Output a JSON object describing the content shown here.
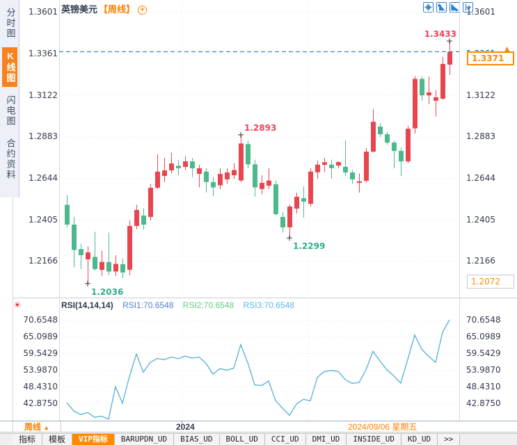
{
  "header": {
    "symbol": "英镑美元",
    "period_tag": "【周线】",
    "add_button": "+"
  },
  "toolbar": {
    "icons": [
      "pan",
      "scale-y-axis",
      "scale-x-axis",
      "shift-right"
    ]
  },
  "sidebar": {
    "items": [
      {
        "label": "分时图",
        "selected": false
      },
      {
        "label": "K线图",
        "selected": true
      },
      {
        "label": "闪电图",
        "selected": false
      },
      {
        "label": "合约资料",
        "selected": false
      }
    ]
  },
  "colors": {
    "up_candle": "#e8464f",
    "down_candle": "#4cb98c",
    "accent_orange": "#ff8a00",
    "marker_high": "#ef4156",
    "marker_low": "#2fae89",
    "current_price_line": "#1f7fd0",
    "rsi_line": "#52aed6",
    "rsi1_text": "#4f81d2",
    "rsi2_text": "#5fd07f",
    "rsi3_text": "#55b9e8",
    "selected_tab": "#ff8a00"
  },
  "chart_data": [
    {
      "type": "candlestick",
      "title": "英镑美元 周线",
      "y_axis_labels": [
        "1.3601",
        "1.3361",
        "1.3122",
        "1.2883",
        "1.2644",
        "1.2405",
        "1.2166"
      ],
      "ylim": [
        1.1956,
        1.3669
      ],
      "grid": "dotted",
      "current_price": "1.3371",
      "current_price_value": 1.3371,
      "reference_price": "1.2072",
      "markers": [
        {
          "label": "1.3433",
          "index": 55,
          "kind": "high",
          "anchor": "end"
        },
        {
          "label": "1.2893",
          "index": 25,
          "kind": "high",
          "anchor": "start"
        },
        {
          "label": "1.2299",
          "index": 32,
          "kind": "low",
          "anchor": "start"
        },
        {
          "label": "1.2036",
          "index": 3,
          "kind": "low",
          "anchor": "start"
        }
      ],
      "candles": [
        [
          1.249,
          1.2545,
          1.236,
          1.2376
        ],
        [
          1.2376,
          1.242,
          1.213,
          1.223
        ],
        [
          1.2235,
          1.2265,
          1.212,
          1.22
        ],
        [
          1.2176,
          1.225,
          1.2036,
          1.2216
        ],
        [
          1.219,
          1.2335,
          1.211,
          1.212
        ],
        [
          1.2115,
          1.2225,
          1.208,
          1.2161
        ],
        [
          1.216,
          1.233,
          1.2085,
          1.2106
        ],
        [
          1.2106,
          1.22,
          1.208,
          1.215
        ],
        [
          1.2148,
          1.218,
          1.2068,
          1.21
        ],
        [
          1.2116,
          1.24,
          1.2085,
          1.2368
        ],
        [
          1.2368,
          1.249,
          1.235,
          1.246
        ],
        [
          1.2428,
          1.247,
          1.2348,
          1.2376
        ],
        [
          1.242,
          1.2608,
          1.24,
          1.2588
        ],
        [
          1.2588,
          1.2781,
          1.258,
          1.2681
        ],
        [
          1.2656,
          1.276,
          1.262,
          1.2688
        ],
        [
          1.2688,
          1.279,
          1.267,
          1.2728
        ],
        [
          1.2715,
          1.275,
          1.266,
          1.27
        ],
        [
          1.2708,
          1.277,
          1.269,
          1.274
        ],
        [
          1.274,
          1.276,
          1.265,
          1.27
        ],
        [
          1.2668,
          1.272,
          1.259,
          1.27
        ],
        [
          1.2681,
          1.27,
          1.256,
          1.2621
        ],
        [
          1.2621,
          1.265,
          1.254,
          1.259
        ],
        [
          1.2602,
          1.27,
          1.258,
          1.2668
        ],
        [
          1.2636,
          1.27,
          1.261,
          1.2676
        ],
        [
          1.266,
          1.273,
          1.264,
          1.269
        ],
        [
          1.263,
          1.2893,
          1.262,
          1.2843
        ],
        [
          1.2839,
          1.286,
          1.27,
          1.2723
        ],
        [
          1.2723,
          1.275,
          1.2537,
          1.259
        ],
        [
          1.2581,
          1.266,
          1.255,
          1.2616
        ],
        [
          1.26,
          1.27,
          1.258,
          1.263
        ],
        [
          1.2608,
          1.263,
          1.2428,
          1.2436
        ],
        [
          1.242,
          1.245,
          1.233,
          1.236
        ],
        [
          1.236,
          1.249,
          1.2299,
          1.248
        ],
        [
          1.2468,
          1.256,
          1.244,
          1.2536
        ],
        [
          1.2528,
          1.2596,
          1.2416,
          1.2508
        ],
        [
          1.2496,
          1.27,
          1.248,
          1.2681
        ],
        [
          1.2677,
          1.2745,
          1.264,
          1.2721
        ],
        [
          1.272,
          1.276,
          1.268,
          1.2735
        ],
        [
          1.2721,
          1.275,
          1.2641,
          1.2701
        ],
        [
          1.2716,
          1.274,
          1.27,
          1.2736
        ],
        [
          1.2709,
          1.286,
          1.2657,
          1.2676
        ],
        [
          1.2676,
          1.269,
          1.261,
          1.2636
        ],
        [
          1.2616,
          1.267,
          1.256,
          1.2625
        ],
        [
          1.2628,
          1.2817,
          1.2615,
          1.2796
        ],
        [
          1.2796,
          1.304,
          1.279,
          1.2968
        ],
        [
          1.294,
          1.2961,
          1.2881,
          1.2896
        ],
        [
          1.2896,
          1.291,
          1.2836,
          1.2848
        ],
        [
          1.2848,
          1.286,
          1.27,
          1.28
        ],
        [
          1.28,
          1.282,
          1.2656,
          1.274
        ],
        [
          1.274,
          1.2945,
          1.273,
          1.2928
        ],
        [
          1.293,
          1.323,
          1.29,
          1.3215
        ],
        [
          1.3215,
          1.323,
          1.309,
          1.312
        ],
        [
          1.312,
          1.3229,
          1.3069,
          1.3137
        ],
        [
          1.3089,
          1.315,
          1.2997,
          1.3109
        ],
        [
          1.3101,
          1.3341,
          1.3095,
          1.3301
        ],
        [
          1.3297,
          1.3433,
          1.3237,
          1.3371
        ]
      ]
    },
    {
      "type": "line",
      "title": "RSI(14,14,14)",
      "legend": [
        "RSI1:70.6548",
        "RSI2:70.6548",
        "RSI3:70.6548"
      ],
      "y_axis_labels": [
        "70.6548",
        "65.0989",
        "59.5429",
        "53.9870",
        "48.4310",
        "42.8750"
      ],
      "ylim": [
        36.5,
        72.5
      ],
      "grid": "dotted",
      "values": [
        43.1,
        40.3,
        39.1,
        39.8,
        38.2,
        38.6,
        37.6,
        48.4,
        42.9,
        51.8,
        59.3,
        53.2,
        56.5,
        57.8,
        57.4,
        58.3,
        57.7,
        58.6,
        57.9,
        58.3,
        56.2,
        52.6,
        54.4,
        53.9,
        54.6,
        62.4,
        56.4,
        49.0,
        48.8,
        50.3,
        43.8,
        41.2,
        38.9,
        42.6,
        44.2,
        43.7,
        51.5,
        53.4,
        53.8,
        53.5,
        50.8,
        49.5,
        49.8,
        54.0,
        60.2,
        57.0,
        54.0,
        52.0,
        49.6,
        57.5,
        65.6,
        60.9,
        58.5,
        56.5,
        66.5,
        70.6548
      ]
    }
  ],
  "bottom": {
    "period_label": "周线",
    "period_arrow": "▲",
    "year_label": "2024",
    "date_label": "2024/09/06 星期五"
  },
  "tabs": [
    {
      "label": "指标",
      "selected": false
    },
    {
      "label": "模板",
      "selected": false
    },
    {
      "label": "VIP指标",
      "selected": true
    },
    {
      "label": "BARUPDN_UD",
      "selected": false
    },
    {
      "label": "BIAS_UD",
      "selected": false
    },
    {
      "label": "BOLL_UD",
      "selected": false
    },
    {
      "label": "CCI_UD",
      "selected": false
    },
    {
      "label": "DMI_UD",
      "selected": false
    },
    {
      "label": "INSIDE_UD",
      "selected": false
    },
    {
      "label": "KD_UD",
      "selected": false
    },
    {
      "label": ">>",
      "selected": false
    }
  ]
}
